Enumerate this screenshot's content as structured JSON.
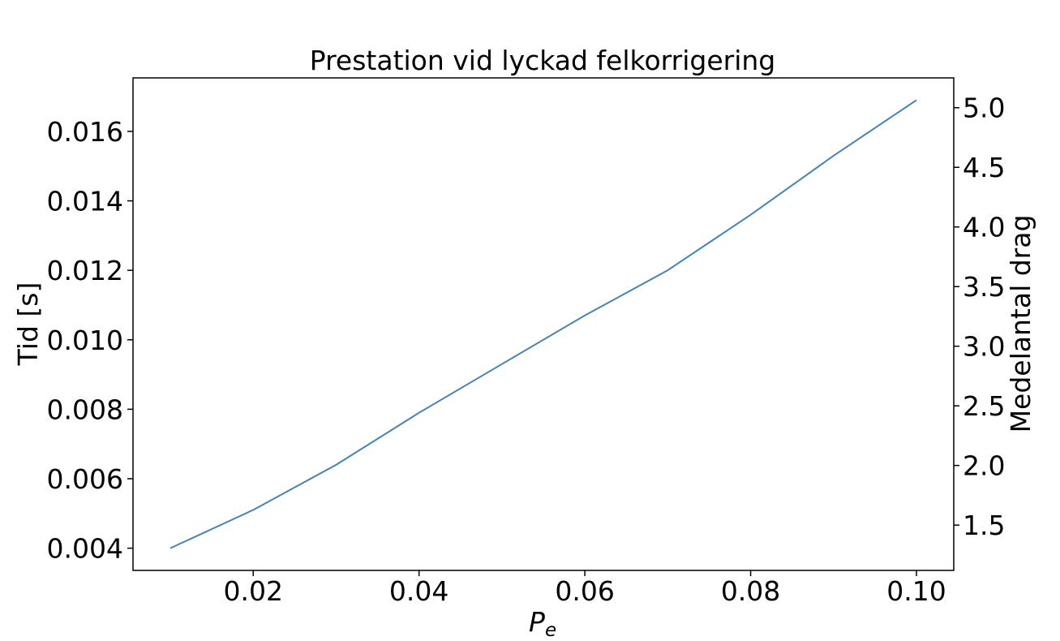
{
  "chart_data": {
    "type": "line",
    "title": "Prestation vid lyckad felkorrigering",
    "xlabel": "P_e",
    "xlabel_main": "P",
    "xlabel_sub": "e",
    "ylabel": "Tid [s]",
    "y2label": "Medelantal drag",
    "xlim": [
      0.0055,
      0.1045
    ],
    "ylim": [
      0.00336,
      0.01754
    ],
    "y2lim": [
      1.12,
      5.25
    ],
    "x_ticks": [
      "0.02",
      "0.04",
      "0.06",
      "0.08",
      "0.10"
    ],
    "y_ticks": [
      "0.004",
      "0.006",
      "0.008",
      "0.010",
      "0.012",
      "0.014",
      "0.016"
    ],
    "y2_ticks": [
      "1.5",
      "2.0",
      "2.5",
      "3.0",
      "3.5",
      "4.0",
      "4.5",
      "5.0"
    ],
    "grid": false,
    "line_color": "#4682b4",
    "series": [
      {
        "x": [
          0.01,
          0.02,
          0.03,
          0.04,
          0.05,
          0.06,
          0.07,
          0.08,
          0.09,
          0.1
        ],
        "values": [
          0.004,
          0.0051,
          0.0064,
          0.0079,
          0.0093,
          0.0107,
          0.012,
          0.0136,
          0.0153,
          0.0169
        ]
      }
    ]
  }
}
